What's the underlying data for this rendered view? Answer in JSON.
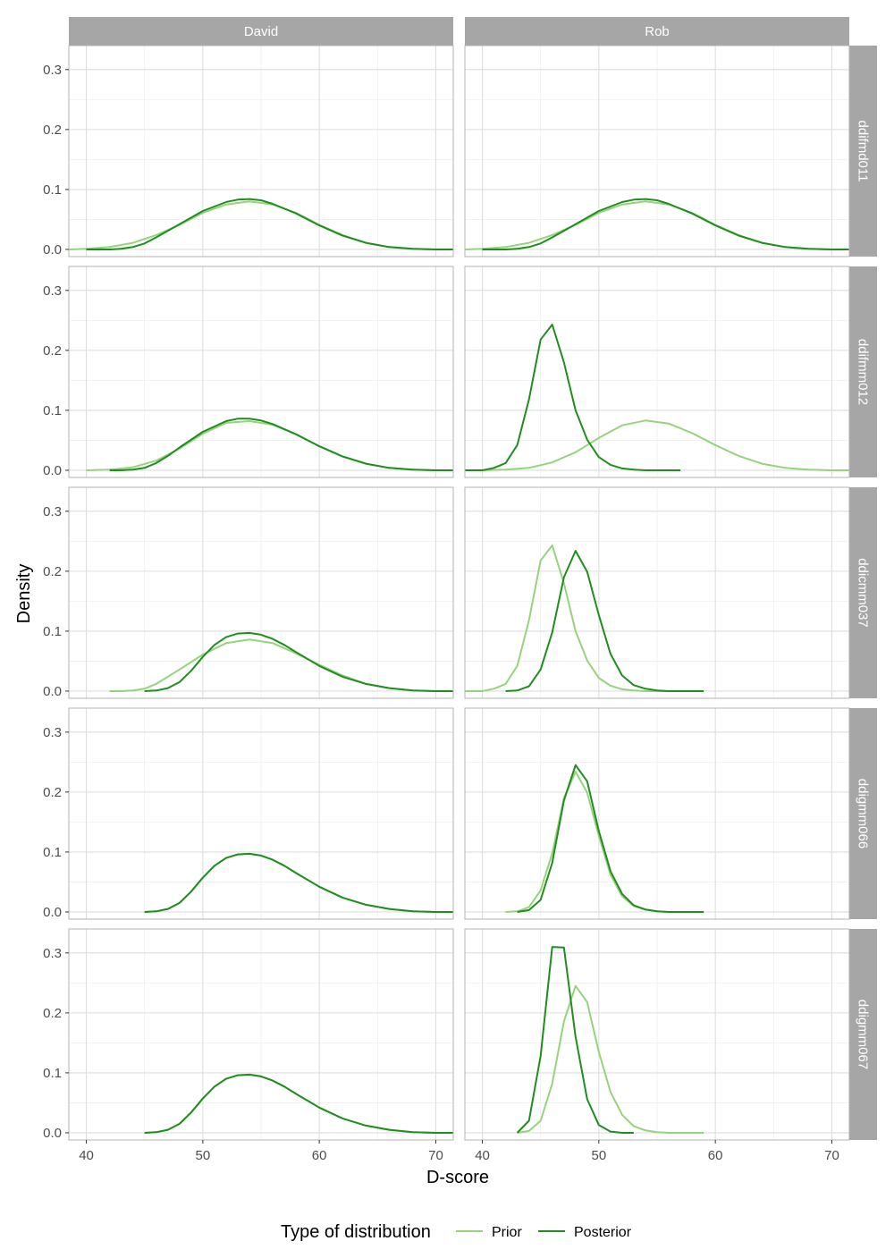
{
  "chart_data": {
    "type": "line",
    "facet_columns": [
      "David",
      "Rob"
    ],
    "facet_rows": [
      "ddifmd011",
      "ddifmm012",
      "ddicmm037",
      "ddigmm066",
      "ddigmm067"
    ],
    "xlabel": "D-score",
    "ylabel": "Density",
    "xlim": [
      38.5,
      71.5
    ],
    "ylim": [
      -0.012,
      0.34
    ],
    "x_ticks": [
      40,
      50,
      60,
      70
    ],
    "y_ticks": [
      0.0,
      0.1,
      0.2,
      0.3
    ],
    "x_tick_labels": [
      "40",
      "50",
      "60",
      "70"
    ],
    "y_tick_labels": [
      "0.0",
      "0.1",
      "0.2",
      "0.3"
    ],
    "grid": true,
    "legend": {
      "title": "Type of distribution",
      "position": "bottom",
      "entries": [
        {
          "label": "Prior",
          "color": "#95d37c"
        },
        {
          "label": "Posterior",
          "color": "#1f8e1f"
        }
      ]
    },
    "panels": [
      {
        "row": "ddifmd011",
        "col": "David",
        "series": [
          {
            "name": "Prior",
            "x": [
              38,
              40,
              42,
              44,
              46,
              48,
              50,
              52,
              54,
              56,
              58,
              60,
              62,
              64,
              66,
              68,
              70,
              72
            ],
            "y": [
              0.0,
              0.001,
              0.004,
              0.011,
              0.024,
              0.041,
              0.061,
              0.075,
              0.08,
              0.075,
              0.061,
              0.041,
              0.024,
              0.011,
              0.004,
              0.001,
              0.0,
              0.0
            ]
          },
          {
            "name": "Posterior",
            "x": [
              40,
              41,
              42,
              43,
              44,
              45,
              46,
              48,
              50,
              52,
              53,
              54,
              55,
              56,
              58,
              60,
              62,
              64,
              66,
              68,
              70,
              72
            ],
            "y": [
              0.0,
              0.0,
              0.0,
              0.001,
              0.004,
              0.01,
              0.02,
              0.042,
              0.064,
              0.079,
              0.083,
              0.084,
              0.082,
              0.076,
              0.06,
              0.04,
              0.023,
              0.011,
              0.004,
              0.001,
              0.0,
              0.0
            ]
          }
        ]
      },
      {
        "row": "ddifmd011",
        "col": "Rob",
        "series": [
          {
            "name": "Prior",
            "x": [
              38,
              40,
              42,
              44,
              46,
              48,
              50,
              52,
              54,
              56,
              58,
              60,
              62,
              64,
              66,
              68,
              70,
              72
            ],
            "y": [
              0.0,
              0.001,
              0.004,
              0.011,
              0.024,
              0.041,
              0.061,
              0.075,
              0.08,
              0.075,
              0.061,
              0.041,
              0.024,
              0.011,
              0.004,
              0.001,
              0.0,
              0.0
            ]
          },
          {
            "name": "Posterior",
            "x": [
              40,
              41,
              42,
              43,
              44,
              45,
              46,
              48,
              50,
              52,
              53,
              54,
              55,
              56,
              58,
              60,
              62,
              64,
              66,
              68,
              70,
              72
            ],
            "y": [
              0.0,
              0.0,
              0.0,
              0.001,
              0.004,
              0.01,
              0.02,
              0.042,
              0.064,
              0.079,
              0.083,
              0.084,
              0.082,
              0.076,
              0.06,
              0.04,
              0.023,
              0.011,
              0.004,
              0.001,
              0.0,
              0.0
            ]
          }
        ]
      },
      {
        "row": "ddifmm012",
        "col": "David",
        "series": [
          {
            "name": "Prior",
            "x": [
              40,
              42,
              44,
              46,
              48,
              50,
              52,
              54,
              56,
              58,
              60,
              62,
              64,
              66,
              68,
              70,
              72
            ],
            "y": [
              0.0,
              0.001,
              0.005,
              0.016,
              0.036,
              0.061,
              0.079,
              0.082,
              0.076,
              0.06,
              0.04,
              0.023,
              0.011,
              0.004,
              0.001,
              0.0,
              0.0
            ]
          },
          {
            "name": "Posterior",
            "x": [
              42,
              43,
              44,
              45,
              46,
              47,
              48,
              50,
              52,
              53,
              54,
              55,
              56,
              58,
              60,
              62,
              64,
              66,
              68,
              70,
              72
            ],
            "y": [
              0.0,
              0.0,
              0.001,
              0.004,
              0.012,
              0.024,
              0.038,
              0.064,
              0.082,
              0.086,
              0.086,
              0.083,
              0.077,
              0.06,
              0.04,
              0.023,
              0.011,
              0.004,
              0.001,
              0.0,
              0.0
            ]
          }
        ]
      },
      {
        "row": "ddifmm012",
        "col": "Rob",
        "series": [
          {
            "name": "Prior",
            "x": [
              38,
              40,
              42,
              44,
              46,
              48,
              50,
              52,
              54,
              56,
              58,
              60,
              62,
              64,
              66,
              68,
              70,
              72
            ],
            "y": [
              0.0,
              0.0,
              0.001,
              0.004,
              0.013,
              0.03,
              0.054,
              0.075,
              0.083,
              0.078,
              0.062,
              0.042,
              0.024,
              0.011,
              0.004,
              0.001,
              0.0,
              0.0
            ]
          },
          {
            "name": "Posterior",
            "x": [
              38,
              40,
              41,
              42,
              43,
              44,
              45,
              46,
              47,
              48,
              49,
              50,
              51,
              52,
              53,
              54,
              55,
              56,
              57
            ],
            "y": [
              0.0,
              0.0,
              0.004,
              0.012,
              0.042,
              0.118,
              0.218,
              0.243,
              0.18,
              0.1,
              0.051,
              0.022,
              0.009,
              0.003,
              0.001,
              0.0,
              0.0,
              0.0,
              0.0
            ]
          }
        ]
      },
      {
        "row": "ddicmm037",
        "col": "David",
        "series": [
          {
            "name": "Prior",
            "x": [
              42,
              43,
              44,
              45,
              46,
              48,
              50,
              52,
              54,
              56,
              58,
              60,
              62,
              64,
              66,
              68,
              70,
              72
            ],
            "y": [
              0.0,
              0.0,
              0.001,
              0.004,
              0.012,
              0.036,
              0.061,
              0.08,
              0.086,
              0.08,
              0.063,
              0.044,
              0.026,
              0.012,
              0.005,
              0.001,
              0.0,
              0.0
            ]
          },
          {
            "name": "Posterior",
            "x": [
              45,
              46,
              47,
              48,
              49,
              50,
              51,
              52,
              53,
              54,
              55,
              56,
              57,
              58,
              60,
              62,
              64,
              66,
              68,
              70,
              72
            ],
            "y": [
              0.0,
              0.001,
              0.005,
              0.015,
              0.034,
              0.057,
              0.077,
              0.09,
              0.096,
              0.097,
              0.094,
              0.087,
              0.077,
              0.065,
              0.042,
              0.024,
              0.012,
              0.005,
              0.001,
              0.0,
              0.0
            ]
          }
        ]
      },
      {
        "row": "ddicmm037",
        "col": "Rob",
        "series": [
          {
            "name": "Prior",
            "x": [
              38,
              40,
              41,
              42,
              43,
              44,
              45,
              46,
              47,
              48,
              49,
              50,
              51,
              52,
              53,
              54,
              55,
              56,
              57
            ],
            "y": [
              0.0,
              0.0,
              0.004,
              0.012,
              0.042,
              0.118,
              0.218,
              0.243,
              0.18,
              0.1,
              0.051,
              0.022,
              0.009,
              0.003,
              0.001,
              0.0,
              0.0,
              0.0,
              0.0
            ]
          },
          {
            "name": "Posterior",
            "x": [
              42,
              43,
              44,
              45,
              46,
              47,
              48,
              49,
              50,
              51,
              52,
              53,
              54,
              55,
              56,
              57,
              58,
              59
            ],
            "y": [
              0.0,
              0.001,
              0.008,
              0.036,
              0.098,
              0.19,
              0.234,
              0.199,
              0.127,
              0.062,
              0.026,
              0.01,
              0.004,
              0.001,
              0.0,
              0.0,
              0.0,
              0.0
            ]
          }
        ]
      },
      {
        "row": "ddigmm066",
        "col": "David",
        "series": [
          {
            "name": "Prior",
            "x": [
              45,
              46,
              47,
              48,
              49,
              50,
              51,
              52,
              53,
              54,
              55,
              56,
              57,
              58,
              60,
              62,
              64,
              66,
              68,
              70,
              72
            ],
            "y": [
              0.0,
              0.001,
              0.005,
              0.015,
              0.034,
              0.057,
              0.077,
              0.09,
              0.096,
              0.097,
              0.094,
              0.087,
              0.077,
              0.065,
              0.042,
              0.024,
              0.012,
              0.005,
              0.001,
              0.0,
              0.0
            ]
          },
          {
            "name": "Posterior",
            "x": [
              45,
              46,
              47,
              48,
              49,
              50,
              51,
              52,
              53,
              54,
              55,
              56,
              57,
              58,
              60,
              62,
              64,
              66,
              68,
              70,
              72
            ],
            "y": [
              0.0,
              0.001,
              0.005,
              0.015,
              0.034,
              0.057,
              0.077,
              0.09,
              0.096,
              0.097,
              0.094,
              0.087,
              0.077,
              0.065,
              0.042,
              0.024,
              0.012,
              0.005,
              0.001,
              0.0,
              0.0
            ]
          }
        ]
      },
      {
        "row": "ddigmm066",
        "col": "Rob",
        "series": [
          {
            "name": "Prior",
            "x": [
              42,
              43,
              44,
              45,
              46,
              47,
              48,
              49,
              50,
              51,
              52,
              53,
              54,
              55,
              56,
              57,
              58,
              59
            ],
            "y": [
              0.0,
              0.001,
              0.008,
              0.036,
              0.098,
              0.19,
              0.234,
              0.199,
              0.127,
              0.062,
              0.026,
              0.01,
              0.004,
              0.001,
              0.0,
              0.0,
              0.0,
              0.0
            ]
          },
          {
            "name": "Posterior",
            "x": [
              43,
              44,
              45,
              46,
              47,
              48,
              49,
              50,
              51,
              52,
              53,
              54,
              55,
              56,
              57,
              58,
              59
            ],
            "y": [
              0.0,
              0.003,
              0.02,
              0.082,
              0.186,
              0.245,
              0.218,
              0.135,
              0.068,
              0.03,
              0.011,
              0.004,
              0.001,
              0.0,
              0.0,
              0.0,
              0.0
            ]
          }
        ]
      },
      {
        "row": "ddigmm067",
        "col": "David",
        "series": [
          {
            "name": "Prior",
            "x": [
              45,
              46,
              47,
              48,
              49,
              50,
              51,
              52,
              53,
              54,
              55,
              56,
              57,
              58,
              60,
              62,
              64,
              66,
              68,
              70,
              72
            ],
            "y": [
              0.0,
              0.001,
              0.005,
              0.015,
              0.034,
              0.057,
              0.077,
              0.09,
              0.096,
              0.097,
              0.094,
              0.087,
              0.077,
              0.065,
              0.042,
              0.024,
              0.012,
              0.005,
              0.001,
              0.0,
              0.0
            ]
          },
          {
            "name": "Posterior",
            "x": [
              45,
              46,
              47,
              48,
              49,
              50,
              51,
              52,
              53,
              54,
              55,
              56,
              57,
              58,
              60,
              62,
              64,
              66,
              68,
              70,
              72
            ],
            "y": [
              0.0,
              0.001,
              0.005,
              0.015,
              0.034,
              0.057,
              0.077,
              0.09,
              0.096,
              0.097,
              0.094,
              0.087,
              0.077,
              0.065,
              0.042,
              0.024,
              0.012,
              0.005,
              0.001,
              0.0,
              0.0
            ]
          }
        ]
      },
      {
        "row": "ddigmm067",
        "col": "Rob",
        "series": [
          {
            "name": "Prior",
            "x": [
              43,
              44,
              45,
              46,
              47,
              48,
              49,
              50,
              51,
              52,
              53,
              54,
              55,
              56,
              57,
              58,
              59
            ],
            "y": [
              0.0,
              0.003,
              0.02,
              0.082,
              0.186,
              0.245,
              0.218,
              0.135,
              0.068,
              0.03,
              0.011,
              0.004,
              0.001,
              0.0,
              0.0,
              0.0,
              0.0
            ]
          },
          {
            "name": "Posterior",
            "x": [
              43,
              44,
              45,
              46,
              47,
              48,
              49,
              50,
              51,
              52,
              53
            ],
            "y": [
              0.0,
              0.02,
              0.128,
              0.31,
              0.309,
              0.16,
              0.056,
              0.013,
              0.002,
              0.0,
              0.0
            ]
          }
        ]
      }
    ]
  }
}
